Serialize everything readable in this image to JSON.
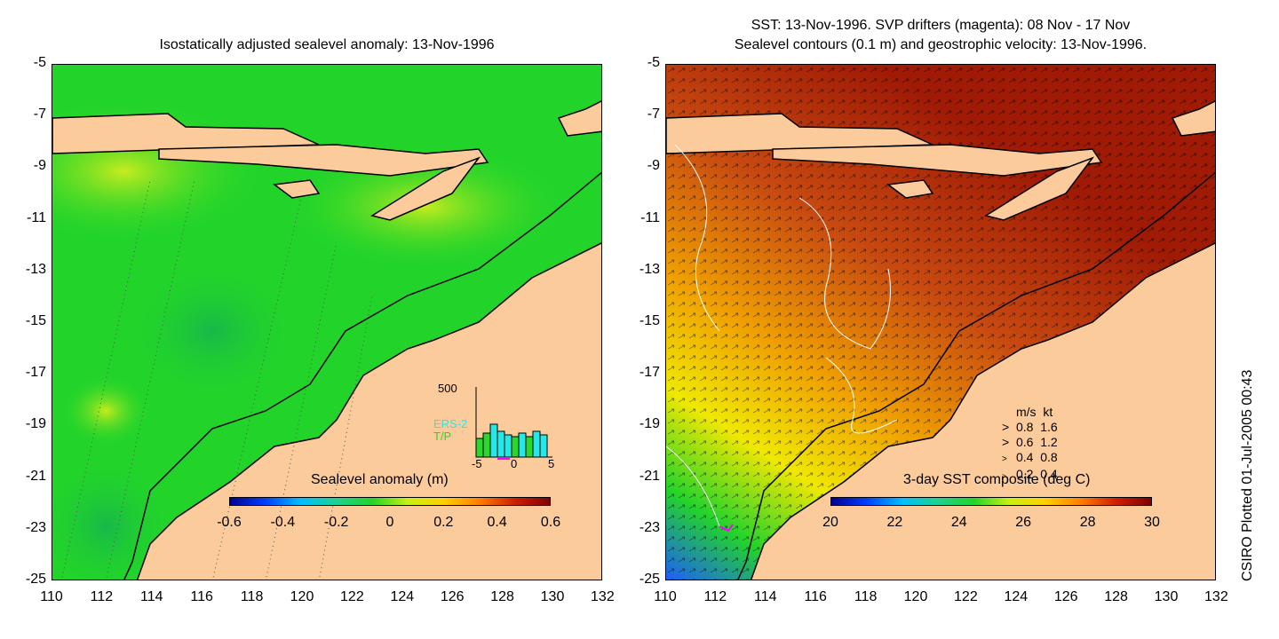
{
  "left": {
    "title": "Isostatically adjusted sealevel anomaly: 13-Nov-1996",
    "colorbar_title": "Sealevel anomaly (m)",
    "colorbar_ticks": [
      "-0.6",
      "-0.4",
      "-0.2",
      "0",
      "0.2",
      "0.4",
      "0.6"
    ],
    "inset": {
      "ymax": "500",
      "xticks": [
        "-5",
        "0",
        "5"
      ],
      "legend": [
        "ERS-2",
        "T/P"
      ],
      "colors": [
        "#26e8e8",
        "#2bd72b"
      ]
    }
  },
  "right": {
    "title_line1": "SST: 13-Nov-1996. SVP drifters (magenta): 08 Nov - 17 Nov",
    "title_line2": "Sealevel contours (0.1 m) and geostrophic velocity: 13-Nov-1996.",
    "colorbar_title": "3-day SST composite (deg C)",
    "colorbar_ticks": [
      "20",
      "22",
      "24",
      "26",
      "28",
      "30"
    ],
    "legend": {
      "header_ms": "m/s",
      "header_kt": "kt",
      "rows": [
        [
          "0.8",
          "1.6"
        ],
        [
          "0.6",
          "1.2"
        ],
        [
          "0.4",
          "0.8"
        ],
        [
          "0.2",
          "0.4"
        ]
      ]
    }
  },
  "axes": {
    "y_ticks": [
      "-5",
      "-7",
      "-9",
      "-11",
      "-13",
      "-15",
      "-17",
      "-19",
      "-21",
      "-23",
      "-25"
    ],
    "x_ticks": [
      "110",
      "112",
      "114",
      "116",
      "118",
      "120",
      "122",
      "124",
      "126",
      "128",
      "130",
      "132"
    ]
  },
  "side_label": "CSIRO Plotted 01-Jul-2005 00:43",
  "colors": {
    "land": "#fccb9c",
    "ocean_left": "#22d42a",
    "ocean_right_warm": "#a01a05",
    "ocean_right_cool": "#f0b000"
  }
}
